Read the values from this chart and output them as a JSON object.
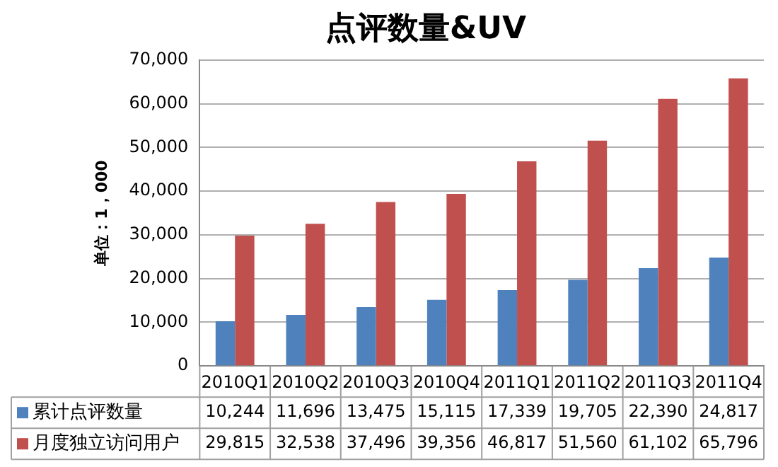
{
  "chart_data": {
    "type": "bar",
    "title": "点评数量&UV",
    "ylabel": "单位：1，000",
    "categories": [
      "2010Q1",
      "2010Q2",
      "2010Q3",
      "2010Q4",
      "2011Q1",
      "2011Q2",
      "2011Q3",
      "2011Q4"
    ],
    "series": [
      {
        "name": "累计点评数量",
        "color": "#4f81bd",
        "values": [
          10244,
          11696,
          13475,
          15115,
          17339,
          19705,
          22390,
          24817
        ],
        "value_labels": [
          "10,244",
          "11,696",
          "13,475",
          "15,115",
          "17,339",
          "19,705",
          "22,390",
          "24,817"
        ]
      },
      {
        "name": "月度独立访问用户",
        "color": "#c0504d",
        "values": [
          29815,
          32538,
          37496,
          39356,
          46817,
          51560,
          61102,
          65796
        ],
        "value_labels": [
          "29,815",
          "32,538",
          "37,496",
          "39,356",
          "46,817",
          "51,560",
          "61,102",
          "65,796"
        ]
      }
    ],
    "ylim": [
      0,
      70000
    ],
    "yticks": [
      0,
      {
        "value": 10000,
        "label": "10,000"
      },
      {
        "value": 20000,
        "label": "20,000"
      },
      {
        "value": 30000,
        "label": "30,000"
      },
      {
        "value": 40000,
        "label": "40,000"
      },
      {
        "value": 50000,
        "label": "50,000"
      },
      {
        "value": 60000,
        "label": "60,000"
      },
      {
        "value": 70000,
        "label": "70,000"
      }
    ],
    "grid": "y",
    "legend": "bottom"
  }
}
